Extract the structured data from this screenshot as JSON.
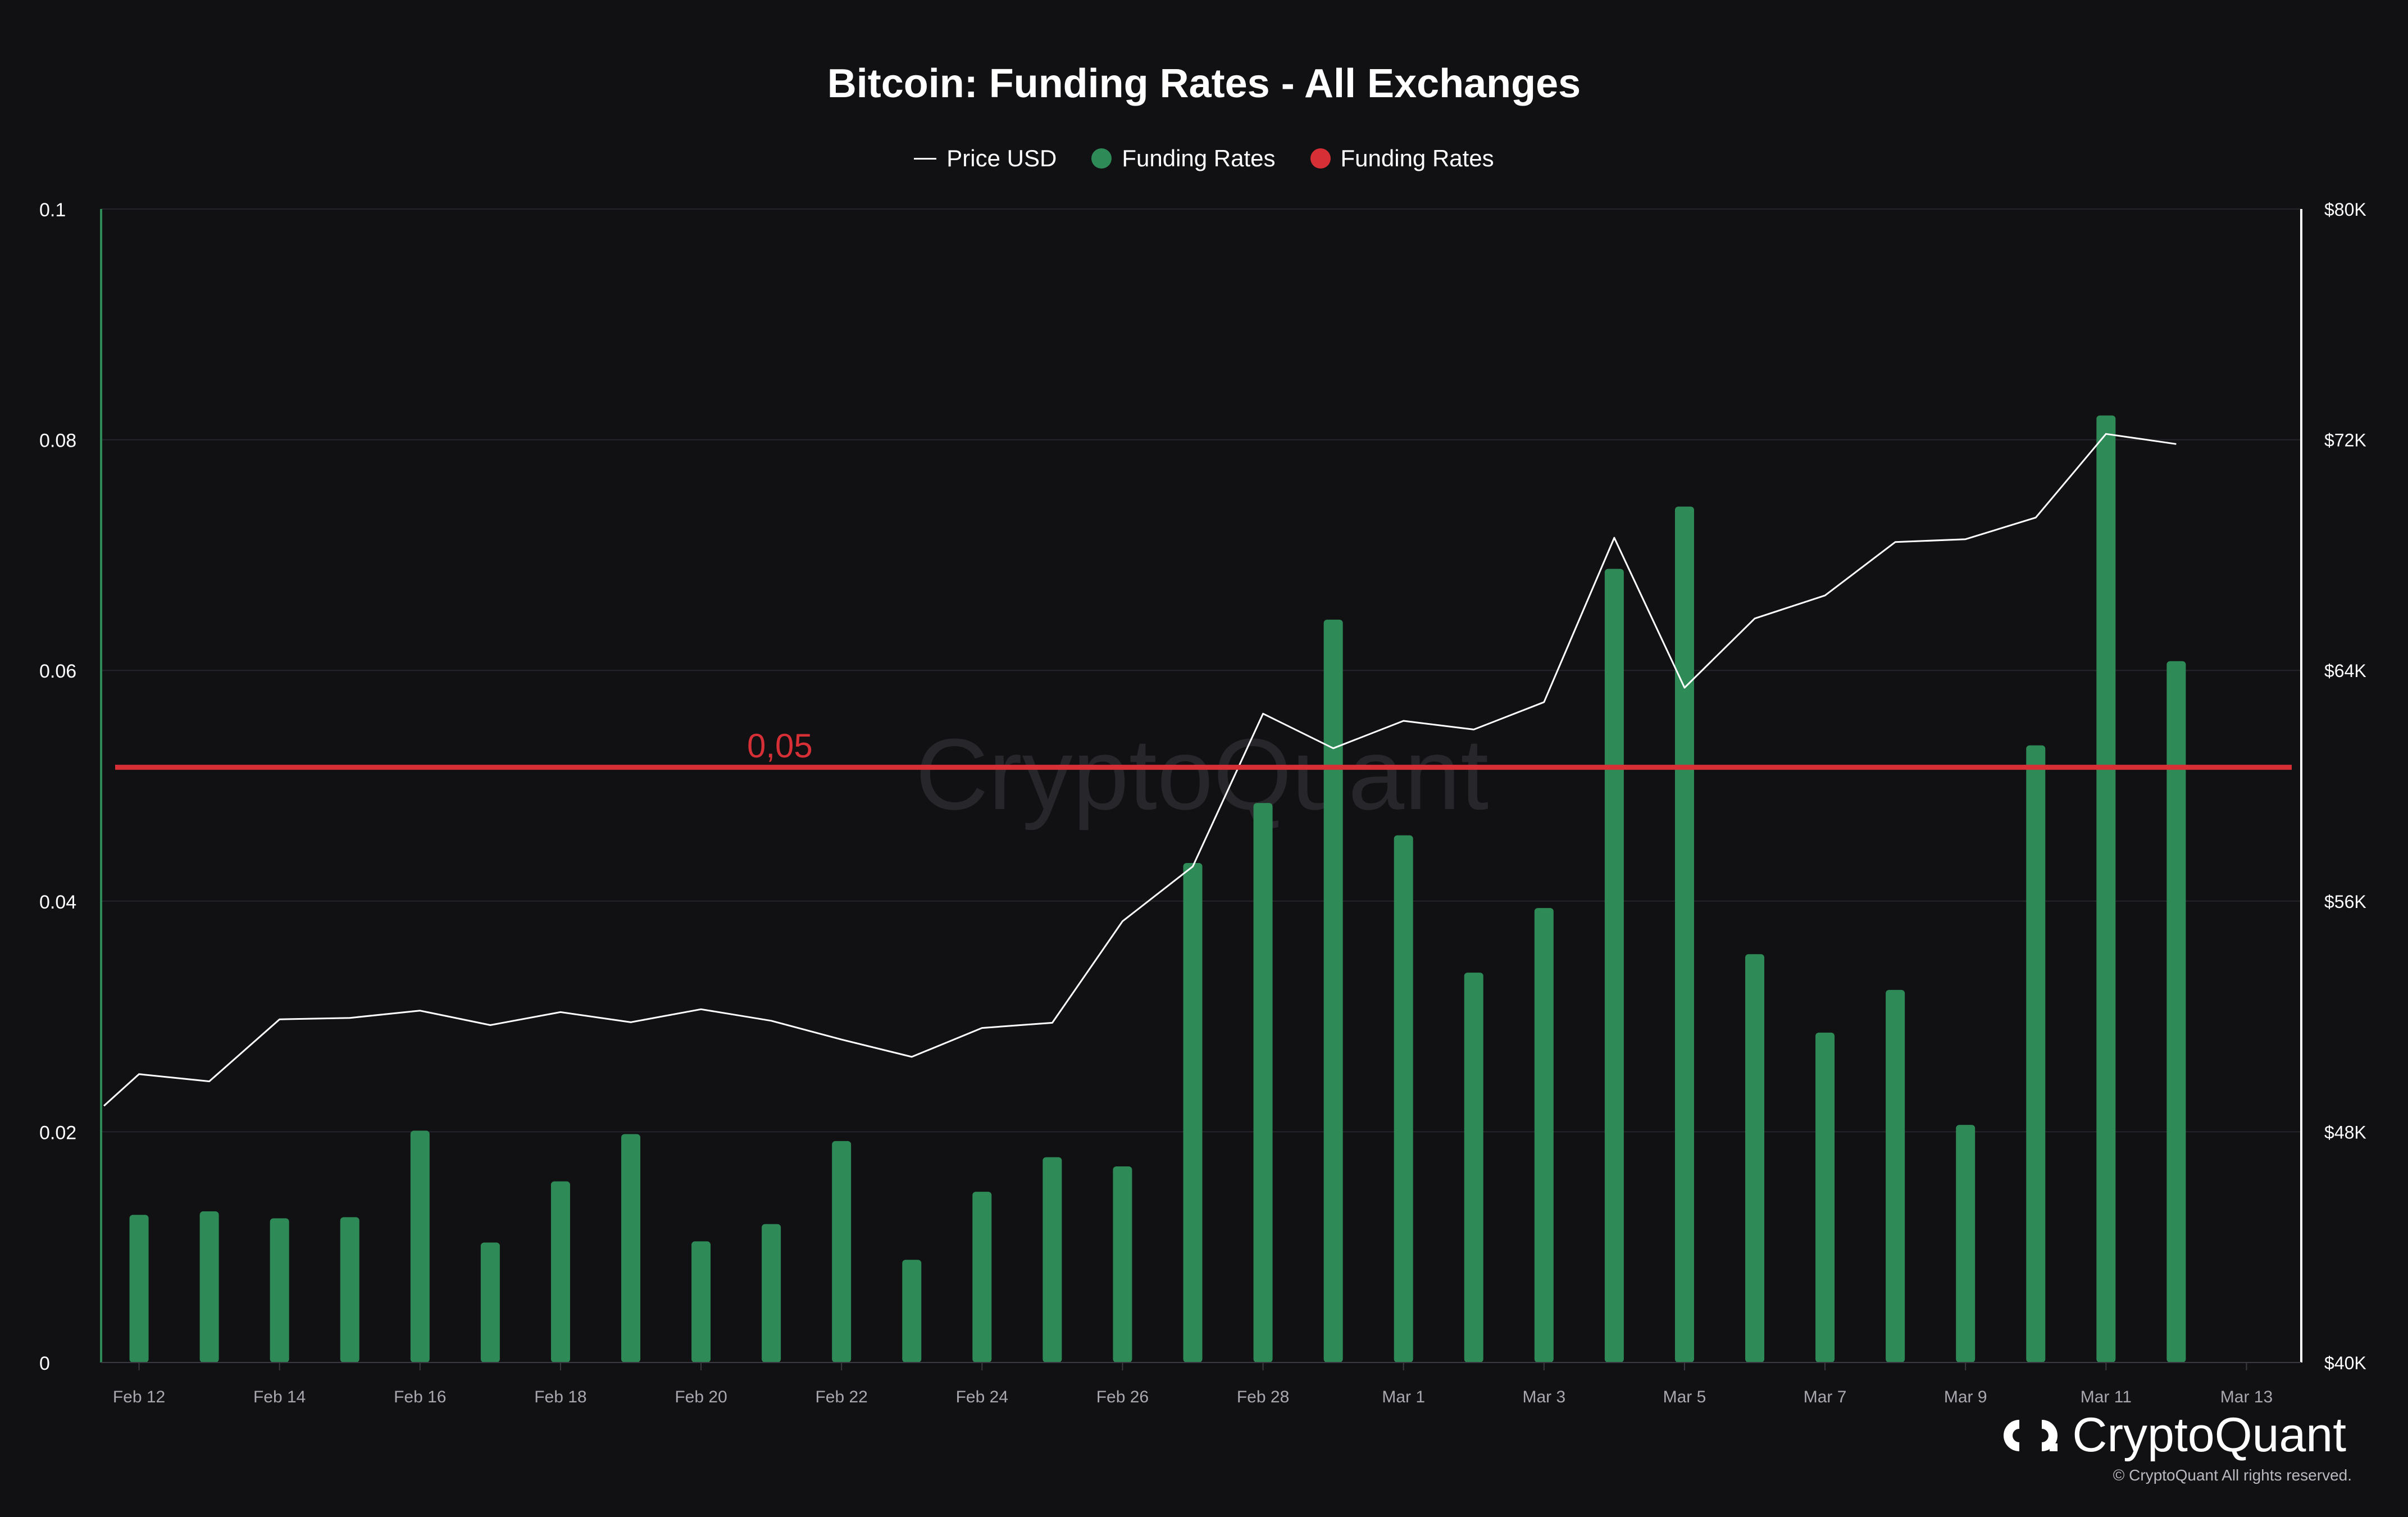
{
  "title": "Bitcoin: Funding Rates - All Exchanges",
  "legend": {
    "price_label": "Price USD",
    "positive_label": "Funding Rates",
    "negative_label": "Funding Rates"
  },
  "colors": {
    "background": "#111114",
    "positive": "#2e8b57",
    "negative": "#d62f36",
    "price": "#ffffff",
    "grid": "#25252b",
    "left_axis": "#2e8b57",
    "threshold": "#d62f36",
    "tick_text": "#ffffff",
    "date_text": "#a8a8ae",
    "watermark": "#2d2d33"
  },
  "watermark": "CryptoQuant",
  "brand": {
    "name": "CryptoQuant",
    "copyright": "© CryptoQuant All rights reserved."
  },
  "chart_data": {
    "type": "bar",
    "title": "Bitcoin: Funding Rates - All Exchanges",
    "x_ticks": [
      "Feb 12",
      "Feb 14",
      "Feb 16",
      "Feb 18",
      "Feb 20",
      "Feb 22",
      "Feb 24",
      "Feb 26",
      "Feb 28",
      "Mar 1",
      "Mar 3",
      "Mar 5",
      "Mar 7",
      "Mar 9",
      "Mar 11",
      "Mar 13"
    ],
    "left_axis": {
      "ylim": [
        0,
        0.1
      ],
      "ticks": [
        0,
        0.02,
        0.04,
        0.06,
        0.08,
        0.1
      ],
      "tick_labels": [
        "0",
        "0.02",
        "0.04",
        "0.06",
        "0.08",
        "0.1"
      ]
    },
    "right_axis": {
      "ylim": [
        40000,
        80000
      ],
      "ticks": [
        40000,
        48000,
        56000,
        64000,
        72000,
        80000
      ],
      "tick_labels": [
        "$40K",
        "$48K",
        "$56K",
        "$64K",
        "$72K",
        "$80K"
      ]
    },
    "dates": [
      "2024-02-12",
      "2024-02-13",
      "2024-02-14",
      "2024-02-15",
      "2024-02-16",
      "2024-02-17",
      "2024-02-18",
      "2024-02-19",
      "2024-02-20",
      "2024-02-21",
      "2024-02-22",
      "2024-02-23",
      "2024-02-24",
      "2024-02-25",
      "2024-02-26",
      "2024-02-27",
      "2024-02-28",
      "2024-02-29",
      "2024-03-01",
      "2024-03-02",
      "2024-03-03",
      "2024-03-04",
      "2024-03-05",
      "2024-03-06",
      "2024-03-07",
      "2024-03-08",
      "2024-03-09",
      "2024-03-10",
      "2024-03-11",
      "2024-03-12"
    ],
    "series": [
      {
        "name": "Funding Rates",
        "axis": "left",
        "kind": "bar",
        "values": [
          0.0128,
          0.0131,
          0.0125,
          0.0126,
          0.0201,
          0.0104,
          0.0157,
          0.0198,
          0.0105,
          0.012,
          0.0192,
          0.0089,
          0.0148,
          0.0178,
          0.017,
          0.0433,
          0.0485,
          0.0644,
          0.0457,
          0.0338,
          0.0394,
          0.0688,
          0.0742,
          0.0354,
          0.0286,
          0.0323,
          0.0206,
          0.0535,
          0.0821,
          0.0608
        ]
      },
      {
        "name": "Price USD",
        "axis": "right",
        "kind": "line",
        "x": [
          "2024-02-11 12:00",
          "2024-02-12",
          "2024-02-13",
          "2024-02-14",
          "2024-02-15",
          "2024-02-16",
          "2024-02-17",
          "2024-02-18",
          "2024-02-19",
          "2024-02-20",
          "2024-02-21",
          "2024-02-22",
          "2024-02-23",
          "2024-02-24",
          "2024-02-25",
          "2024-02-26",
          "2024-02-27",
          "2024-02-28",
          "2024-02-29",
          "2024-03-01",
          "2024-03-02",
          "2024-03-03",
          "2024-03-04",
          "2024-03-05",
          "2024-03-06",
          "2024-03-07",
          "2024-03-08",
          "2024-03-09",
          "2024-03-10",
          "2024-03-11",
          "2024-03-12"
        ],
        "values": [
          48900,
          50000,
          49750,
          51900,
          51950,
          52200,
          51700,
          52150,
          51800,
          52250,
          51850,
          51200,
          50600,
          51600,
          51780,
          55300,
          57200,
          62500,
          61300,
          62250,
          61950,
          62900,
          68600,
          63400,
          65800,
          66600,
          68450,
          68550,
          69300,
          72200,
          71850
        ]
      }
    ],
    "threshold": {
      "value": 0.0516,
      "label": "0,05"
    }
  }
}
